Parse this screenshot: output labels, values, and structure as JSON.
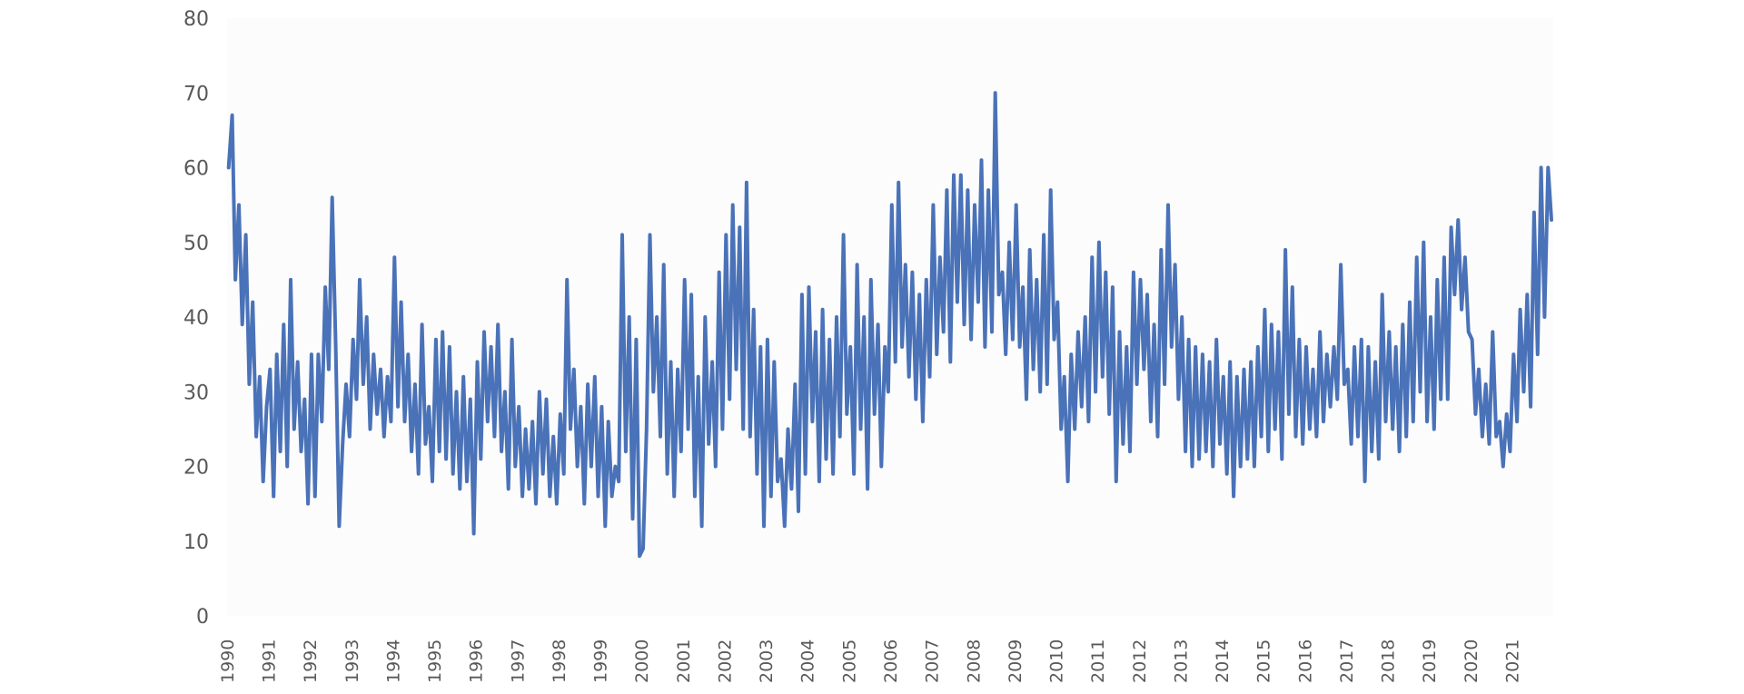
{
  "chart_data": {
    "type": "line",
    "title": "",
    "xlabel": "",
    "ylabel": "",
    "x_range": [
      "1990-01-01",
      "2021-12-31"
    ],
    "ylim": [
      0,
      80
    ],
    "yticks": [
      0,
      10,
      20,
      30,
      40,
      50,
      60,
      70,
      80
    ],
    "xtick_labels": [
      "1990",
      "1991",
      "1992",
      "1993",
      "1994",
      "1995",
      "1996",
      "1997",
      "1998",
      "1999",
      "2000",
      "2001",
      "2002",
      "2003",
      "2004",
      "2005",
      "2006",
      "2007",
      "2008",
      "2009",
      "2010",
      "2011",
      "2012",
      "2013",
      "2014",
      "2015",
      "2016",
      "2017",
      "2018",
      "2019",
      "2020",
      "2021"
    ],
    "grid": false,
    "legend": "none",
    "line_color": "#4a72b8",
    "plot_background": "#fcfcfc",
    "series": [
      {
        "frequency": "monthly",
        "x": [
          "1990-01",
          "1990-02",
          "1990-03",
          "1990-04",
          "1990-05",
          "1990-06",
          "1990-07",
          "1990-08",
          "1990-09",
          "1990-10",
          "1990-11",
          "1990-12",
          "1991-01",
          "1991-02",
          "1991-03",
          "1991-04",
          "1991-05",
          "1991-06",
          "1991-07",
          "1991-08",
          "1991-09",
          "1991-10",
          "1991-11",
          "1991-12",
          "1992-01",
          "1992-02",
          "1992-03",
          "1992-04",
          "1992-05",
          "1992-06",
          "1992-07",
          "1992-08",
          "1992-09",
          "1992-10",
          "1992-11",
          "1992-12",
          "1993-01",
          "1993-02",
          "1993-03",
          "1993-04",
          "1993-05",
          "1993-06",
          "1993-07",
          "1993-08",
          "1993-09",
          "1993-10",
          "1993-11",
          "1993-12",
          "1994-01",
          "1994-02",
          "1994-03",
          "1994-04",
          "1994-05",
          "1994-06",
          "1994-07",
          "1994-08",
          "1994-09",
          "1994-10",
          "1994-11",
          "1994-12",
          "1995-01",
          "1995-02",
          "1995-03",
          "1995-04",
          "1995-05",
          "1995-06",
          "1995-07",
          "1995-08",
          "1995-09",
          "1995-10",
          "1995-11",
          "1995-12",
          "1996-01",
          "1996-02",
          "1996-03",
          "1996-04",
          "1996-05",
          "1996-06",
          "1996-07",
          "1996-08",
          "1996-09",
          "1996-10",
          "1996-11",
          "1996-12",
          "1997-01",
          "1997-02",
          "1997-03",
          "1997-04",
          "1997-05",
          "1997-06",
          "1997-07",
          "1997-08",
          "1997-09",
          "1997-10",
          "1997-11",
          "1997-12",
          "1998-01",
          "1998-02",
          "1998-03",
          "1998-04",
          "1998-05",
          "1998-06",
          "1998-07",
          "1998-08",
          "1998-09",
          "1998-10",
          "1998-11",
          "1998-12",
          "1999-01",
          "1999-02",
          "1999-03",
          "1999-04",
          "1999-05",
          "1999-06",
          "1999-07",
          "1999-08",
          "1999-09",
          "1999-10",
          "1999-11",
          "1999-12",
          "2000-01",
          "2000-02",
          "2000-03",
          "2000-04",
          "2000-05",
          "2000-06",
          "2000-07",
          "2000-08",
          "2000-09",
          "2000-10",
          "2000-11",
          "2000-12",
          "2001-01",
          "2001-02",
          "2001-03",
          "2001-04",
          "2001-05",
          "2001-06",
          "2001-07",
          "2001-08",
          "2001-09",
          "2001-10",
          "2001-11",
          "2001-12",
          "2002-01",
          "2002-02",
          "2002-03",
          "2002-04",
          "2002-05",
          "2002-06",
          "2002-07",
          "2002-08",
          "2002-09",
          "2002-10",
          "2002-11",
          "2002-12",
          "2003-01",
          "2003-02",
          "2003-03",
          "2003-04",
          "2003-05",
          "2003-06",
          "2003-07",
          "2003-08",
          "2003-09",
          "2003-10",
          "2003-11",
          "2003-12",
          "2004-01",
          "2004-02",
          "2004-03",
          "2004-04",
          "2004-05",
          "2004-06",
          "2004-07",
          "2004-08",
          "2004-09",
          "2004-10",
          "2004-11",
          "2004-12",
          "2005-01",
          "2005-02",
          "2005-03",
          "2005-04",
          "2005-05",
          "2005-06",
          "2005-07",
          "2005-08",
          "2005-09",
          "2005-10",
          "2005-11",
          "2005-12",
          "2006-01",
          "2006-02",
          "2006-03",
          "2006-04",
          "2006-05",
          "2006-06",
          "2006-07",
          "2006-08",
          "2006-09",
          "2006-10",
          "2006-11",
          "2006-12",
          "2007-01",
          "2007-02",
          "2007-03",
          "2007-04",
          "2007-05",
          "2007-06",
          "2007-07",
          "2007-08",
          "2007-09",
          "2007-10",
          "2007-11",
          "2007-12",
          "2008-01",
          "2008-02",
          "2008-03",
          "2008-04",
          "2008-05",
          "2008-06",
          "2008-07",
          "2008-08",
          "2008-09",
          "2008-10",
          "2008-11",
          "2008-12",
          "2009-01",
          "2009-02",
          "2009-03",
          "2009-04",
          "2009-05",
          "2009-06",
          "2009-07",
          "2009-08",
          "2009-09",
          "2009-10",
          "2009-11",
          "2009-12",
          "2010-01",
          "2010-02",
          "2010-03",
          "2010-04",
          "2010-05",
          "2010-06",
          "2010-07",
          "2010-08",
          "2010-09",
          "2010-10",
          "2010-11",
          "2010-12",
          "2011-01",
          "2011-02",
          "2011-03",
          "2011-04",
          "2011-05",
          "2011-06",
          "2011-07",
          "2011-08",
          "2011-09",
          "2011-10",
          "2011-11",
          "2011-12",
          "2012-01",
          "2012-02",
          "2012-03",
          "2012-04",
          "2012-05",
          "2012-06",
          "2012-07",
          "2012-08",
          "2012-09",
          "2012-10",
          "2012-11",
          "2012-12",
          "2013-01",
          "2013-02",
          "2013-03",
          "2013-04",
          "2013-05",
          "2013-06",
          "2013-07",
          "2013-08",
          "2013-09",
          "2013-10",
          "2013-11",
          "2013-12",
          "2014-01",
          "2014-02",
          "2014-03",
          "2014-04",
          "2014-05",
          "2014-06",
          "2014-07",
          "2014-08",
          "2014-09",
          "2014-10",
          "2014-11",
          "2014-12",
          "2015-01",
          "2015-02",
          "2015-03",
          "2015-04",
          "2015-05",
          "2015-06",
          "2015-07",
          "2015-08",
          "2015-09",
          "2015-10",
          "2015-11",
          "2015-12",
          "2016-01",
          "2016-02",
          "2016-03",
          "2016-04",
          "2016-05",
          "2016-06",
          "2016-07",
          "2016-08",
          "2016-09",
          "2016-10",
          "2016-11",
          "2016-12",
          "2017-01",
          "2017-02",
          "2017-03",
          "2017-04",
          "2017-05",
          "2017-06",
          "2017-07",
          "2017-08",
          "2017-09",
          "2017-10",
          "2017-11",
          "2017-12",
          "2018-01",
          "2018-02",
          "2018-03",
          "2018-04",
          "2018-05",
          "2018-06",
          "2018-07",
          "2018-08",
          "2018-09",
          "2018-10",
          "2018-11",
          "2018-12",
          "2019-01",
          "2019-02",
          "2019-03",
          "2019-04",
          "2019-05",
          "2019-06",
          "2019-07",
          "2019-08",
          "2019-09",
          "2019-10",
          "2019-11",
          "2019-12",
          "2020-01",
          "2020-02",
          "2020-03",
          "2020-04",
          "2020-05",
          "2020-06",
          "2020-07",
          "2020-08",
          "2020-09",
          "2020-10",
          "2020-11",
          "2020-12",
          "2021-01",
          "2021-02",
          "2021-03",
          "2021-04",
          "2021-05",
          "2021-06",
          "2021-07",
          "2021-08",
          "2021-09",
          "2021-10",
          "2021-11",
          "2021-12"
        ],
        "y": [
          60,
          67,
          45,
          55,
          39,
          51,
          31,
          42,
          24,
          32,
          18,
          28,
          33,
          16,
          35,
          22,
          39,
          20,
          45,
          25,
          34,
          22,
          29,
          15,
          35,
          16,
          35,
          26,
          44,
          33,
          56,
          36,
          12,
          23,
          31,
          24,
          37,
          29,
          45,
          31,
          40,
          25,
          35,
          27,
          33,
          24,
          32,
          26,
          48,
          28,
          42,
          26,
          35,
          22,
          31,
          19,
          39,
          23,
          28,
          18,
          37,
          22,
          38,
          21,
          36,
          19,
          30,
          17,
          32,
          18,
          29,
          11,
          34,
          21,
          38,
          26,
          36,
          24,
          39,
          22,
          30,
          17,
          37,
          20,
          28,
          16,
          25,
          17,
          26,
          15,
          30,
          19,
          29,
          16,
          24,
          15,
          27,
          19,
          45,
          25,
          33,
          20,
          28,
          15,
          31,
          20,
          32,
          16,
          28,
          12,
          26,
          16,
          20,
          18,
          51,
          22,
          40,
          13,
          37,
          8,
          9,
          25,
          51,
          30,
          40,
          24,
          47,
          19,
          34,
          16,
          33,
          22,
          45,
          25,
          43,
          16,
          32,
          12,
          40,
          23,
          34,
          20,
          46,
          25,
          51,
          29,
          55,
          33,
          52,
          25,
          58,
          24,
          41,
          19,
          36,
          12,
          37,
          16,
          34,
          18,
          21,
          12,
          25,
          17,
          31,
          14,
          43,
          19,
          44,
          26,
          38,
          18,
          41,
          21,
          37,
          19,
          40,
          24,
          51,
          27,
          36,
          19,
          47,
          25,
          40,
          17,
          45,
          27,
          39,
          20,
          36,
          30,
          55,
          34,
          58,
          36,
          47,
          32,
          46,
          29,
          43,
          26,
          45,
          32,
          55,
          35,
          48,
          38,
          57,
          34,
          59,
          42,
          59,
          39,
          57,
          37,
          55,
          42,
          61,
          36,
          57,
          38,
          70,
          43,
          46,
          35,
          50,
          37,
          55,
          36,
          44,
          29,
          49,
          33,
          45,
          30,
          51,
          31,
          57,
          37,
          42,
          25,
          32,
          18,
          35,
          25,
          38,
          28,
          40,
          26,
          48,
          30,
          50,
          32,
          46,
          27,
          44,
          18,
          38,
          23,
          36,
          22,
          46,
          31,
          45,
          33,
          43,
          26,
          39,
          24,
          49,
          31,
          55,
          36,
          47,
          29,
          40,
          22,
          37,
          20,
          36,
          21,
          35,
          22,
          34,
          20,
          37,
          23,
          32,
          19,
          34,
          16,
          32,
          20,
          33,
          21,
          34,
          20,
          36,
          24,
          41,
          22,
          39,
          25,
          38,
          21,
          49,
          27,
          44,
          24,
          37,
          23,
          36,
          25,
          33,
          24,
          38,
          26,
          35,
          28,
          36,
          29,
          47,
          31,
          33,
          23,
          36,
          24,
          37,
          18,
          36,
          22,
          34,
          21,
          43,
          26,
          38,
          25,
          36,
          22,
          39,
          24,
          42,
          26,
          48,
          30,
          50,
          26,
          40,
          25,
          45,
          29,
          48,
          29,
          52,
          43,
          53,
          41,
          48,
          38,
          37,
          27,
          33,
          24,
          31,
          23,
          38,
          24,
          26,
          20,
          27,
          22,
          35,
          26,
          41,
          30,
          43,
          28,
          54,
          35,
          60,
          40,
          60,
          53
        ]
      }
    ]
  }
}
